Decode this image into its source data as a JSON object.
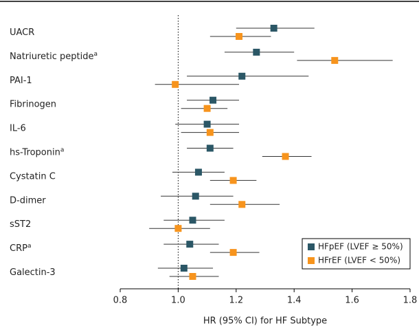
{
  "chart_data": {
    "type": "forest",
    "xlabel": "HR (95% CI) for HF Subtype",
    "categories": [
      "UACR",
      "Natriuretic peptide",
      "PAI-1",
      "Fibrinogen",
      "IL-6",
      "hs-Troponin",
      "Cystatin C",
      "D-dimer",
      "sST2",
      "CRP",
      "Galectin-3"
    ],
    "footnote_marks": [
      null,
      "a",
      null,
      null,
      null,
      "a",
      null,
      null,
      null,
      "a",
      null
    ],
    "series": [
      {
        "name": "HFpEF (LVEF ≥ 50%)",
        "color": "#2b5766",
        "values": [
          1.33,
          1.27,
          1.22,
          1.12,
          1.1,
          1.11,
          1.07,
          1.06,
          1.05,
          1.04,
          1.02
        ],
        "lower": [
          1.2,
          1.16,
          1.03,
          1.03,
          0.99,
          1.03,
          0.98,
          0.94,
          0.95,
          0.95,
          0.93
        ],
        "upper": [
          1.47,
          1.4,
          1.45,
          1.21,
          1.21,
          1.19,
          1.16,
          1.19,
          1.16,
          1.14,
          1.12
        ]
      },
      {
        "name": "HFrEF (LVEF < 50%)",
        "color": "#f7941d",
        "values": [
          1.21,
          1.54,
          0.99,
          1.1,
          1.11,
          1.37,
          1.19,
          1.22,
          1.0,
          1.19,
          1.05
        ],
        "lower": [
          1.11,
          1.41,
          0.92,
          1.01,
          1.01,
          1.29,
          1.11,
          1.11,
          0.9,
          1.11,
          0.97
        ],
        "upper": [
          1.32,
          1.74,
          1.21,
          1.17,
          1.21,
          1.46,
          1.27,
          1.35,
          1.11,
          1.28,
          1.14
        ]
      }
    ],
    "xlim": [
      0.8,
      1.8
    ],
    "xticks": [
      0.8,
      {
        "value": 1,
        "label": "1.0"
      },
      1.2,
      1.4,
      1.6,
      1.8
    ],
    "reference_line": 1,
    "legend": "lower-right"
  }
}
